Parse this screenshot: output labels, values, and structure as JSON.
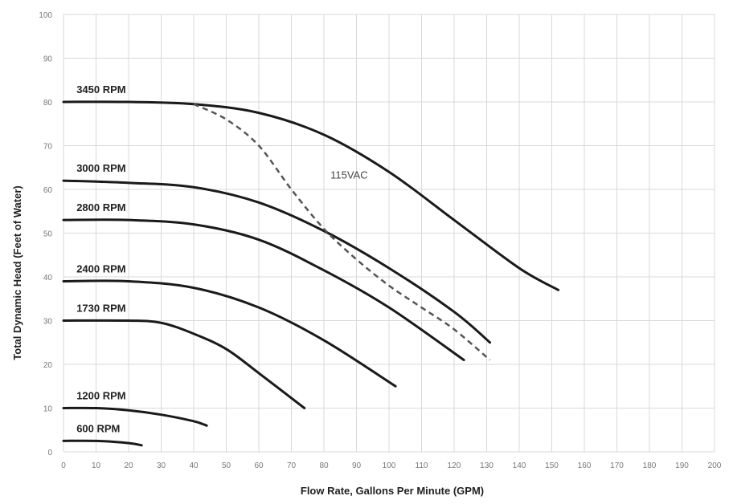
{
  "chart_data": {
    "type": "line",
    "xlabel": "Flow Rate, Gallons Per Minute (GPM)",
    "ylabel": "Total Dynamic Head (Feet of Water)",
    "xlim": [
      0,
      200
    ],
    "ylim": [
      0,
      100
    ],
    "x_ticks": [
      0,
      10,
      20,
      30,
      40,
      50,
      60,
      70,
      80,
      90,
      100,
      110,
      120,
      130,
      140,
      150,
      160,
      170,
      180,
      190,
      200
    ],
    "y_ticks": [
      0,
      10,
      20,
      30,
      40,
      50,
      60,
      70,
      80,
      90,
      100
    ],
    "grid": true,
    "series": [
      {
        "name": "3450 RPM",
        "x": [
          0,
          20,
          40,
          60,
          80,
          100,
          120,
          140,
          152
        ],
        "y": [
          80,
          80,
          79.5,
          77.5,
          72.5,
          64,
          53,
          42,
          37
        ]
      },
      {
        "name": "3000 RPM",
        "x": [
          0,
          20,
          40,
          60,
          80,
          100,
          120,
          131
        ],
        "y": [
          62,
          61.5,
          60.5,
          57,
          50.5,
          42,
          32,
          25
        ]
      },
      {
        "name": "2800 RPM",
        "x": [
          0,
          20,
          40,
          60,
          80,
          100,
          123
        ],
        "y": [
          53,
          53,
          52,
          48.5,
          41.5,
          33,
          21
        ]
      },
      {
        "name": "2400 RPM",
        "x": [
          0,
          20,
          40,
          60,
          80,
          102
        ],
        "y": [
          39,
          39,
          37.5,
          33,
          25.5,
          15
        ]
      },
      {
        "name": "1730 RPM",
        "x": [
          0,
          20,
          30,
          40,
          50,
          60,
          74
        ],
        "y": [
          30,
          30,
          29.5,
          27,
          23.5,
          18,
          10
        ]
      },
      {
        "name": "1200 RPM",
        "x": [
          0,
          10,
          20,
          30,
          40,
          44
        ],
        "y": [
          10,
          10,
          9.5,
          8.5,
          7,
          6
        ]
      },
      {
        "name": "600 RPM",
        "x": [
          0,
          10,
          20,
          24
        ],
        "y": [
          2.5,
          2.5,
          2,
          1.5
        ]
      },
      {
        "name": "115VAC",
        "dashed": true,
        "x": [
          40,
          50,
          60,
          70,
          80,
          90,
          100,
          110,
          120,
          131
        ],
        "y": [
          79.5,
          76,
          70,
          60,
          51,
          44,
          38,
          33,
          28,
          21
        ]
      }
    ],
    "colors": {
      "curve": "#1a1a1a",
      "dashed": "#555555",
      "grid": "#d9d9d9",
      "tick": "#777777"
    }
  }
}
